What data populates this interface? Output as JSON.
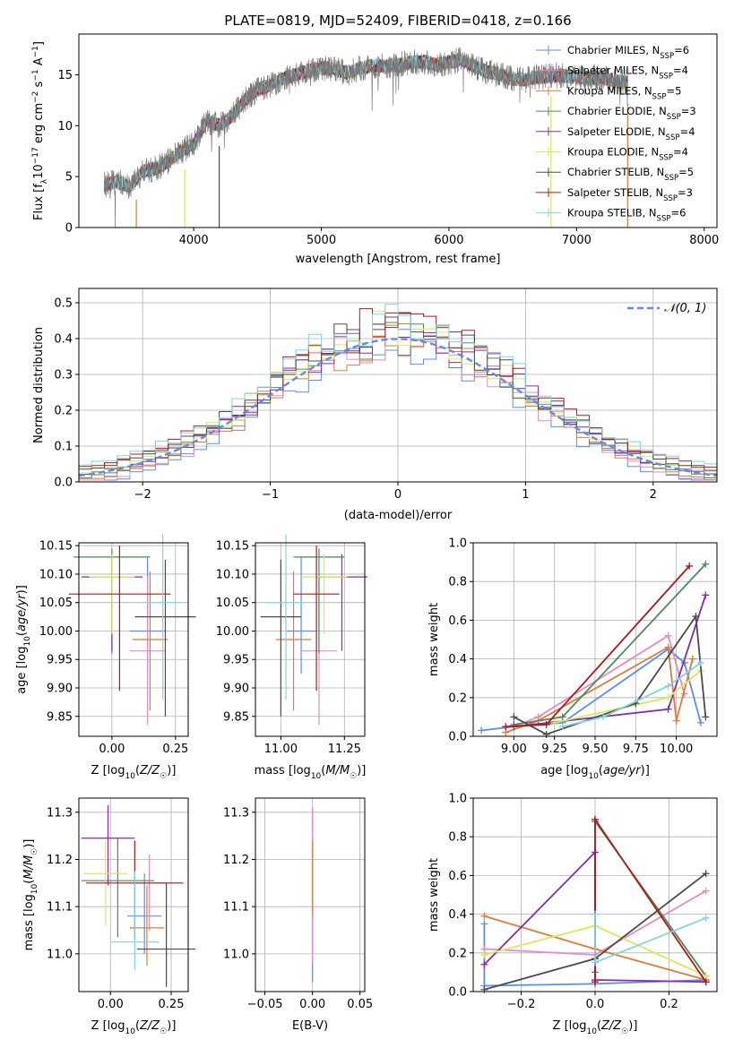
{
  "title": "PLATE=0819, MJD=52409, FIBERID=0418, z=0.166",
  "models": [
    {
      "name": "Chabrier MILES",
      "nssp": "6",
      "color": "#5b8def"
    },
    {
      "name": "Salpeter MILES",
      "nssp": "4",
      "color": "#e88bc4"
    },
    {
      "name": "Kroupa MILES",
      "nssp": "5",
      "color": "#e07b39"
    },
    {
      "name": "Chabrier ELODIE",
      "nssp": "3",
      "color": "#4e8a5a"
    },
    {
      "name": "Salpeter ELODIE",
      "nssp": "4",
      "color": "#8a2aa8"
    },
    {
      "name": "Kroupa ELODIE",
      "nssp": "4",
      "color": "#d6ea5a"
    },
    {
      "name": "Chabrier STELIB",
      "nssp": "5",
      "color": "#4a4a4a"
    },
    {
      "name": "Salpeter STELIB",
      "nssp": "3",
      "color": "#b01818"
    },
    {
      "name": "Kroupa STELIB",
      "nssp": "6",
      "color": "#7fd6e0"
    }
  ],
  "chart_data": [
    {
      "id": "spectrum",
      "type": "line",
      "xlabel": "wavelength [Angstrom, rest frame]",
      "ylabel": "Flux [f_λ 10^-17 erg cm^-2 s^-1 A^-1]",
      "xlim": [
        3100,
        8100
      ],
      "ylim": [
        0,
        19
      ],
      "xticks": [
        4000,
        5000,
        6000,
        7000,
        8000
      ],
      "yticks": [
        0,
        5,
        10,
        15
      ],
      "flux_x": [
        3300,
        3400,
        3500,
        3600,
        3700,
        3800,
        3900,
        4000,
        4100,
        4200,
        4300,
        4400,
        4500,
        4600,
        4700,
        4800,
        4900,
        5000,
        5100,
        5200,
        5300,
        5400,
        5500,
        5600,
        5700,
        5800,
        5900,
        6000,
        6100,
        6200,
        6300,
        6400,
        6500,
        6600,
        6700,
        6800,
        6900,
        7000,
        7100,
        7200,
        7300,
        7400
      ],
      "flux_y": [
        4.2,
        4.5,
        4.0,
        5.5,
        5.8,
        6.5,
        7.5,
        8.2,
        10.5,
        10.0,
        11.0,
        12.5,
        13.5,
        14.0,
        14.6,
        15.0,
        15.4,
        15.7,
        15.5,
        15.2,
        15.6,
        15.9,
        15.8,
        16.0,
        16.2,
        16.3,
        16.0,
        16.2,
        16.5,
        15.8,
        15.3,
        15.0,
        14.6,
        14.5,
        14.8,
        14.9,
        14.9,
        14.8,
        14.7,
        14.7,
        14.4,
        14.2
      ]
    },
    {
      "id": "residuals",
      "type": "area",
      "xlabel": "(data-model)/error",
      "ylabel": "Normed distribution",
      "xlim": [
        -2.5,
        2.5
      ],
      "ylim": [
        0,
        0.54
      ],
      "xticks": [
        -2,
        -1,
        0,
        1,
        2
      ],
      "yticks": [
        0.0,
        0.1,
        0.2,
        0.3,
        0.4,
        0.5
      ],
      "legend": "𝒩(0, 1)",
      "legend_position": "top-right",
      "bin_width": 0.1,
      "bin_start": -2.5
    },
    {
      "id": "age-Z",
      "type": "scatter",
      "xlabel": "Z [log10(Z/Z☉)]",
      "ylabel": "age  [log10(age/yr)]",
      "xlim": [
        -0.13,
        0.3
      ],
      "ylim": [
        9.815,
        10.155
      ],
      "xticks": [
        0.0,
        0.25
      ],
      "yticks": [
        9.85,
        9.9,
        9.95,
        10.0,
        10.05,
        10.1,
        10.15
      ],
      "points": [
        {
          "x": 0.14,
          "y": 10.0,
          "ex": 0.07,
          "elo": 0.075,
          "ehi": 0.13
        },
        {
          "x": 0.14,
          "y": 9.965,
          "ex": 0.07,
          "elo": 0.13,
          "ehi": 0.13
        },
        {
          "x": 0.15,
          "y": 9.985,
          "ex": 0.07,
          "elo": 0.125,
          "ehi": 0.12
        },
        {
          "x": 0.0,
          "y": 10.13,
          "ex": 0.15,
          "elo": 0.17,
          "ehi": 0.015
        },
        {
          "x": 0.0,
          "y": 10.095,
          "ex": 0.12,
          "elo": 0.13,
          "ehi": 0.04
        },
        {
          "x": 0.0,
          "y": 10.095,
          "ex": 0.09,
          "elo": 0.1,
          "ehi": 0.04
        },
        {
          "x": 0.21,
          "y": 10.025,
          "ex": 0.12,
          "elo": 0.175,
          "ehi": 0.1
        },
        {
          "x": 0.03,
          "y": 10.065,
          "ex": 0.2,
          "elo": 0.17,
          "ehi": 0.085
        },
        {
          "x": 0.2,
          "y": 10.05,
          "ex": 0.07,
          "elo": 0.17,
          "ehi": 0.12
        }
      ]
    },
    {
      "id": "age-mass",
      "type": "scatter",
      "xlabel": "mass [log10(M/M☉)]",
      "ylabel": "",
      "xlim": [
        10.9,
        11.33
      ],
      "ylim": [
        9.815,
        10.155
      ],
      "xticks": [
        11.0,
        11.25
      ],
      "yticks": [
        9.85,
        9.9,
        9.95,
        10.0,
        10.05,
        10.1,
        10.15
      ],
      "points": [
        {
          "x": 11.08,
          "y": 10.0,
          "ex": 0.06,
          "elo": 0.075,
          "ehi": 0.13
        },
        {
          "x": 11.15,
          "y": 9.965,
          "ex": 0.07,
          "elo": 0.13,
          "ehi": 0.13
        },
        {
          "x": 11.05,
          "y": 9.985,
          "ex": 0.07,
          "elo": 0.125,
          "ehi": 0.12
        },
        {
          "x": 11.15,
          "y": 10.13,
          "ex": 0.1,
          "elo": 0.17,
          "ehi": 0.015
        },
        {
          "x": 11.24,
          "y": 10.095,
          "ex": 0.1,
          "elo": 0.13,
          "ehi": 0.04
        },
        {
          "x": 11.17,
          "y": 10.095,
          "ex": 0.09,
          "elo": 0.1,
          "ehi": 0.04
        },
        {
          "x": 11.0,
          "y": 10.025,
          "ex": 0.08,
          "elo": 0.175,
          "ehi": 0.1
        },
        {
          "x": 11.14,
          "y": 10.065,
          "ex": 0.09,
          "elo": 0.17,
          "ehi": 0.085
        },
        {
          "x": 11.02,
          "y": 10.05,
          "ex": 0.08,
          "elo": 0.17,
          "ehi": 0.12
        }
      ]
    },
    {
      "id": "weight-age",
      "type": "line",
      "xlabel": "age  [log10(age/yr)]",
      "ylabel": "mass weight",
      "xlim": [
        8.75,
        10.25
      ],
      "ylim": [
        0,
        1.0
      ],
      "xticks": [
        9.0,
        9.25,
        9.5,
        9.75,
        10.0
      ],
      "yticks": [
        0.0,
        0.2,
        0.4,
        0.6,
        0.8,
        1.0
      ],
      "series": [
        {
          "x": [
            8.8,
            9.0,
            9.3,
            9.95,
            10.05,
            10.15
          ],
          "y": [
            0.03,
            0.05,
            0.07,
            0.45,
            0.38,
            0.07
          ]
        },
        {
          "x": [
            9.0,
            9.15,
            9.95,
            10.05
          ],
          "y": [
            0.05,
            0.1,
            0.52,
            0.22
          ]
        },
        {
          "x": [
            8.95,
            9.15,
            9.95,
            10.0,
            10.1
          ],
          "y": [
            0.02,
            0.08,
            0.46,
            0.08,
            0.4
          ]
        },
        {
          "x": [
            9.0,
            9.3,
            10.18
          ],
          "y": [
            0.06,
            0.1,
            0.89
          ]
        },
        {
          "x": [
            9.0,
            9.95,
            10.18
          ],
          "y": [
            0.05,
            0.14,
            0.73
          ]
        },
        {
          "x": [
            9.25,
            9.95,
            10.15
          ],
          "y": [
            0.07,
            0.2,
            0.34
          ]
        },
        {
          "x": [
            9.0,
            9.2,
            9.75,
            10.12,
            10.18
          ],
          "y": [
            0.1,
            0.01,
            0.17,
            0.62,
            0.1
          ]
        },
        {
          "x": [
            8.95,
            9.2,
            10.08
          ],
          "y": [
            0.05,
            0.06,
            0.88
          ]
        },
        {
          "x": [
            9.3,
            9.55,
            9.95,
            10.15
          ],
          "y": [
            0.05,
            0.1,
            0.26,
            0.38
          ]
        }
      ]
    },
    {
      "id": "mass-Z",
      "type": "scatter",
      "xlabel": "Z [log10(Z/Z☉)]",
      "ylabel": "mass [log10(M/M☉)]",
      "xlim": [
        -0.13,
        0.32
      ],
      "ylim": [
        10.92,
        11.33
      ],
      "xticks": [
        0.0,
        0.25
      ],
      "yticks": [
        11.0,
        11.1,
        11.2,
        11.3
      ],
      "points": [
        {
          "x": 0.14,
          "y": 11.08,
          "ex": 0.07,
          "elo": 0.08,
          "ehi": 0.09
        },
        {
          "x": 0.16,
          "y": 11.15,
          "ex": 0.07,
          "elo": 0.1,
          "ehi": 0.06
        },
        {
          "x": 0.15,
          "y": 11.055,
          "ex": 0.07,
          "elo": 0.08,
          "ehi": 0.09
        },
        {
          "x": 0.03,
          "y": 11.155,
          "ex": 0.15,
          "elo": 0.12,
          "ehi": 0.09
        },
        {
          "x": -0.01,
          "y": 11.245,
          "ex": 0.11,
          "elo": 0.1,
          "ehi": 0.07
        },
        {
          "x": -0.02,
          "y": 11.17,
          "ex": 0.09,
          "elo": 0.11,
          "ehi": 0.07
        },
        {
          "x": 0.23,
          "y": 11.01,
          "ex": 0.12,
          "elo": 0.08,
          "ehi": 0.14
        },
        {
          "x": 0.1,
          "y": 11.15,
          "ex": 0.2,
          "elo": 0.12,
          "ehi": 0.09
        },
        {
          "x": 0.1,
          "y": 11.025,
          "ex": 0.1,
          "elo": 0.06,
          "ehi": 0.15
        }
      ]
    },
    {
      "id": "mass-EBV",
      "type": "scatter",
      "xlabel": "E(B-V)",
      "ylabel": "",
      "xlim": [
        -0.06,
        0.055
      ],
      "ylim": [
        10.92,
        11.33
      ],
      "xticks": [
        -0.05,
        0.0,
        0.05
      ],
      "yticks": [
        11.0,
        11.1,
        11.2,
        11.3
      ],
      "points": [
        {
          "x": 0,
          "y": 11.15,
          "elo": 0.21,
          "ehi": 0.16
        },
        {
          "x": 0,
          "y": 11.18,
          "elo": 0.2,
          "ehi": 0.13
        },
        {
          "x": 0,
          "y": 11.2,
          "elo": 0.12,
          "ehi": 0.04
        }
      ]
    },
    {
      "id": "weight-Z",
      "type": "line",
      "xlabel": "Z [log10(Z/Z☉)]",
      "ylabel": "mass weight",
      "xlim": [
        -0.33,
        0.33
      ],
      "ylim": [
        0,
        1.0
      ],
      "xticks": [
        -0.2,
        0.0,
        0.2
      ],
      "yticks": [
        0.0,
        0.2,
        0.4,
        0.6,
        0.8,
        1.0
      ],
      "series": [
        {
          "x": [
            -0.3,
            -0.3,
            0.0,
            0.3
          ],
          "y": [
            0.35,
            0.03,
            0.04,
            0.06
          ]
        },
        {
          "x": [
            -0.3,
            0.0,
            0.3
          ],
          "y": [
            0.22,
            0.19,
            0.52
          ]
        },
        {
          "x": [
            -0.3,
            0.0,
            0.3
          ],
          "y": [
            0.39,
            0.22,
            0.06
          ]
        },
        {
          "x": [
            0.0,
            0.0,
            0.3
          ],
          "y": [
            0.1,
            0.88,
            0.08
          ]
        },
        {
          "x": [
            -0.3,
            0.0,
            0.0,
            0.3
          ],
          "y": [
            0.14,
            0.72,
            0.06,
            0.05
          ]
        },
        {
          "x": [
            -0.3,
            0.0,
            0.3
          ],
          "y": [
            0.19,
            0.34,
            0.08
          ]
        },
        {
          "x": [
            -0.3,
            0.0,
            0.3
          ],
          "y": [
            0.01,
            0.17,
            0.61
          ]
        },
        {
          "x": [
            0.0,
            0.0,
            0.3
          ],
          "y": [
            0.05,
            0.89,
            0.05
          ]
        },
        {
          "x": [
            0.0,
            0.0,
            0.3
          ],
          "y": [
            0.4,
            0.15,
            0.38
          ]
        }
      ]
    }
  ]
}
